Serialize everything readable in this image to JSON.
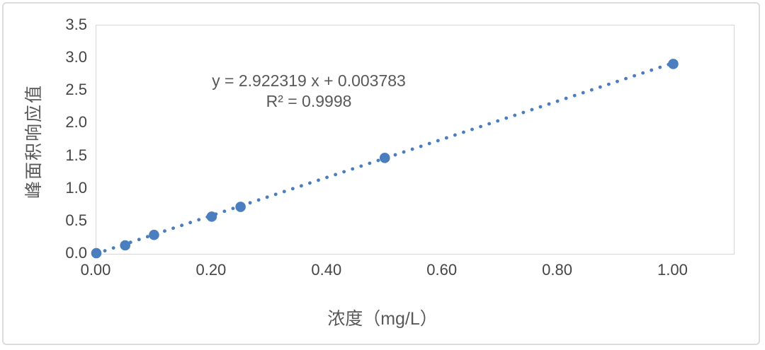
{
  "chart_data": {
    "type": "scatter",
    "title": "",
    "xlabel": "浓度（mg/L）",
    "ylabel": "峰面积响应值",
    "points": [
      [
        0.0,
        0.01
      ],
      [
        0.05,
        0.13
      ],
      [
        0.1,
        0.29
      ],
      [
        0.2,
        0.57
      ],
      [
        0.25,
        0.72
      ],
      [
        0.5,
        1.47
      ],
      [
        1.0,
        2.91
      ]
    ],
    "trendline": {
      "type": "linear",
      "slope": 2.922319,
      "intercept": 0.003783,
      "equation_label": "y = 2.922319 x + 0.003783",
      "r2_label": "R² = 0.9998",
      "style": "dotted"
    },
    "x_tick_labels": [
      "0.00",
      "0.20",
      "0.40",
      "0.60",
      "0.80",
      "1.00"
    ],
    "y_tick_labels": [
      "0.0",
      "0.5",
      "1.0",
      "1.5",
      "2.0",
      "2.5",
      "3.0",
      "3.5"
    ],
    "xlim": [
      0,
      1.105
    ],
    "ylim": [
      0,
      3.5
    ],
    "grid": false,
    "legend": "none",
    "marker_color": "#4a7ebe",
    "line_color": "#4a7ebe"
  }
}
